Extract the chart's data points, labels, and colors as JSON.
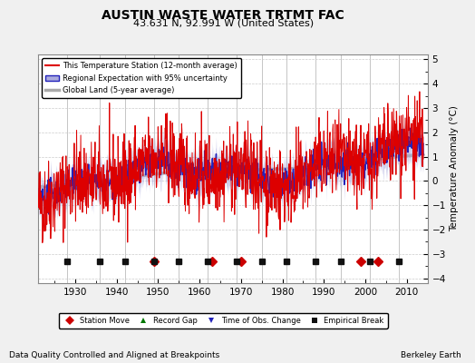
{
  "title": "AUSTIN WASTE WATER TRTMT FAC",
  "subtitle": "43.631 N, 92.991 W (United States)",
  "ylabel": "Temperature Anomaly (°C)",
  "xlabel_note": "Data Quality Controlled and Aligned at Breakpoints",
  "credit": "Berkeley Earth",
  "year_start": 1921,
  "year_end": 2014,
  "ylim": [
    -4.2,
    5.2
  ],
  "yticks": [
    -4,
    -3,
    -2,
    -1,
    0,
    1,
    2,
    3,
    4,
    5
  ],
  "xticks": [
    1930,
    1940,
    1950,
    1960,
    1970,
    1980,
    1990,
    2000,
    2010
  ],
  "bg_color": "#f0f0f0",
  "plot_bg_color": "#ffffff",
  "line_color_station": "#dd0000",
  "line_color_regional": "#2222bb",
  "fill_color_regional": "#aaaadd",
  "line_color_global": "#aaaaaa",
  "marker_strip_y": -3.3,
  "marker_station_move": {
    "color": "#cc0000",
    "marker": "D",
    "years": [
      1949,
      1963,
      1970,
      1999,
      2003
    ]
  },
  "marker_record_gap": {
    "color": "#007700",
    "marker": "^",
    "years": []
  },
  "marker_obs_change": {
    "color": "#2222bb",
    "marker": "v",
    "years": []
  },
  "marker_emp_break": {
    "color": "#111111",
    "marker": "s",
    "years": [
      1928,
      1936,
      1942,
      1949,
      1955,
      1962,
      1969,
      1975,
      1981,
      1988,
      1994,
      2001,
      2008
    ]
  },
  "vline_years": [
    1928,
    1936,
    1942,
    1949,
    1955,
    1962,
    1969,
    1975,
    1981,
    1988,
    1994,
    2001,
    2008
  ],
  "seed": 42
}
